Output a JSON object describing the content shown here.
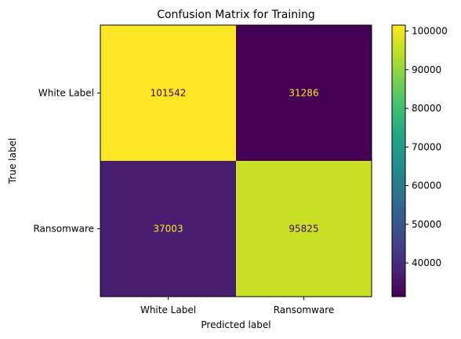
{
  "chart_data": {
    "type": "heatmap",
    "title": "Confusion Matrix for Training",
    "xlabel": "Predicted label",
    "ylabel": "True label",
    "x_categories": [
      "White Label",
      "Ransomware"
    ],
    "y_categories": [
      "White Label",
      "Ransomware"
    ],
    "values": [
      [
        101542,
        31286
      ],
      [
        37003,
        95825
      ]
    ],
    "colormap": "viridis",
    "colorbar": {
      "min": 31286,
      "max": 101542,
      "ticks": [
        40000,
        50000,
        60000,
        70000,
        80000,
        90000,
        100000
      ],
      "tick_labels": [
        "40000",
        "50000",
        "60000",
        "70000",
        "80000",
        "90000",
        "100000"
      ]
    },
    "text_colors": {
      "on_dark": "#fde725",
      "on_light": "#440154"
    }
  }
}
